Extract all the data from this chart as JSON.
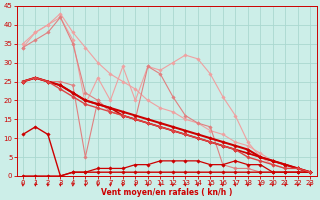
{
  "xlabel": "Vent moyen/en rafales ( kn/h )",
  "bg_color": "#cceee8",
  "grid_color": "#aad8d0",
  "xlim": [
    -0.5,
    23.5
  ],
  "ylim": [
    0,
    45
  ],
  "yticks": [
    0,
    5,
    10,
    15,
    20,
    25,
    30,
    35,
    40,
    45
  ],
  "xticks": [
    0,
    1,
    2,
    3,
    4,
    5,
    6,
    7,
    8,
    9,
    10,
    11,
    12,
    13,
    14,
    15,
    16,
    17,
    18,
    19,
    20,
    21,
    22,
    23
  ],
  "series": [
    {
      "x": [
        0,
        1,
        2,
        3,
        4,
        5,
        6,
        7,
        8,
        9,
        10,
        11,
        12,
        13,
        14,
        15,
        16,
        17,
        18,
        19,
        20,
        21,
        22,
        23
      ],
      "y": [
        35,
        38,
        40,
        43,
        38,
        34,
        30,
        27,
        25,
        23,
        20,
        18,
        17,
        15,
        14,
        12,
        11,
        9,
        8,
        6,
        4,
        3,
        2,
        1
      ],
      "color": "#f0a0a0",
      "lw": 0.8,
      "marker": "D",
      "ms": 1.8
    },
    {
      "x": [
        0,
        1,
        2,
        3,
        4,
        5,
        6,
        7,
        8,
        9,
        10,
        11,
        12,
        13,
        14,
        15,
        16,
        17,
        18,
        19,
        20,
        21,
        22,
        23
      ],
      "y": [
        34,
        38,
        40,
        42,
        36,
        19,
        26,
        20,
        29,
        20,
        29,
        28,
        30,
        32,
        31,
        27,
        21,
        16,
        9,
        5,
        3,
        2,
        2,
        1
      ],
      "color": "#f0a0a0",
      "lw": 0.8,
      "marker": "D",
      "ms": 1.8
    },
    {
      "x": [
        0,
        1,
        2,
        3,
        4,
        5,
        6,
        7,
        8,
        9,
        10,
        11,
        12,
        13,
        14,
        15,
        16,
        17,
        18,
        19,
        20,
        21,
        22,
        23
      ],
      "y": [
        34,
        36,
        38,
        42,
        35,
        22,
        20,
        17,
        16,
        15,
        14,
        13,
        12,
        11,
        10,
        9,
        8,
        7,
        6,
        5,
        4,
        3,
        2,
        1
      ],
      "color": "#e08080",
      "lw": 0.8,
      "marker": "D",
      "ms": 1.8
    },
    {
      "x": [
        0,
        1,
        2,
        3,
        4,
        5,
        6,
        7,
        8,
        9,
        10,
        11,
        12,
        13,
        14,
        15,
        16,
        17,
        18,
        19,
        20,
        21,
        22,
        23
      ],
      "y": [
        25,
        26,
        25,
        25,
        24,
        5,
        20,
        17,
        16,
        15,
        29,
        27,
        21,
        16,
        14,
        13,
        3,
        2,
        2,
        1,
        1,
        1,
        1,
        1
      ],
      "color": "#e08080",
      "lw": 0.8,
      "marker": "D",
      "ms": 1.8
    },
    {
      "x": [
        0,
        1,
        2,
        3,
        4,
        5,
        6,
        7,
        8,
        9,
        10,
        11,
        12,
        13,
        14,
        15,
        16,
        17,
        18,
        19,
        20,
        21,
        22,
        23
      ],
      "y": [
        0,
        0,
        0,
        0,
        1,
        1,
        2,
        2,
        2,
        3,
        3,
        4,
        4,
        4,
        4,
        3,
        3,
        4,
        3,
        3,
        1,
        1,
        1,
        1
      ],
      "color": "#cc0000",
      "lw": 0.9,
      "marker": "D",
      "ms": 1.8
    },
    {
      "x": [
        0,
        1,
        2,
        3,
        4,
        5,
        6,
        7,
        8,
        9,
        10,
        11,
        12,
        13,
        14,
        15,
        16,
        17,
        18,
        19,
        20,
        21,
        22,
        23
      ],
      "y": [
        11,
        13,
        11,
        0,
        1,
        1,
        1,
        1,
        1,
        1,
        1,
        1,
        1,
        1,
        1,
        1,
        1,
        1,
        1,
        1,
        1,
        1,
        1,
        1
      ],
      "color": "#cc0000",
      "lw": 1.0,
      "marker": "D",
      "ms": 1.8
    },
    {
      "x": [
        0,
        1,
        2,
        3,
        4,
        5,
        6,
        7,
        8,
        9,
        10,
        11,
        12,
        13,
        14,
        15,
        16,
        17,
        18,
        19,
        20,
        21,
        22,
        23
      ],
      "y": [
        25,
        26,
        25,
        24,
        22,
        20,
        19,
        18,
        17,
        16,
        15,
        14,
        13,
        12,
        11,
        10,
        9,
        8,
        7,
        5,
        4,
        3,
        2,
        1
      ],
      "color": "#cc0000",
      "lw": 1.5,
      "marker": "D",
      "ms": 1.8
    },
    {
      "x": [
        0,
        1,
        2,
        3,
        4,
        5,
        6,
        7,
        8,
        9,
        10,
        11,
        12,
        13,
        14,
        15,
        16,
        17,
        18,
        19,
        20,
        21,
        22,
        23
      ],
      "y": [
        25,
        26,
        25,
        24,
        22,
        20,
        19,
        18,
        16,
        15,
        14,
        13,
        12,
        11,
        10,
        9,
        8,
        7,
        6,
        5,
        4,
        3,
        2,
        1
      ],
      "color": "#cc0000",
      "lw": 1.2,
      "marker": "D",
      "ms": 1.8
    },
    {
      "x": [
        0,
        1,
        2,
        3,
        4,
        5,
        6,
        7,
        8,
        9,
        10,
        11,
        12,
        13,
        14,
        15,
        16,
        17,
        18,
        19,
        20,
        21,
        22,
        23
      ],
      "y": [
        25,
        26,
        25,
        23,
        21,
        19,
        18,
        17,
        16,
        15,
        14,
        13,
        12,
        11,
        10,
        9,
        8,
        7,
        5,
        4,
        3,
        2,
        2,
        1
      ],
      "color": "#dd4444",
      "lw": 1.0,
      "marker": "D",
      "ms": 1.8
    }
  ]
}
